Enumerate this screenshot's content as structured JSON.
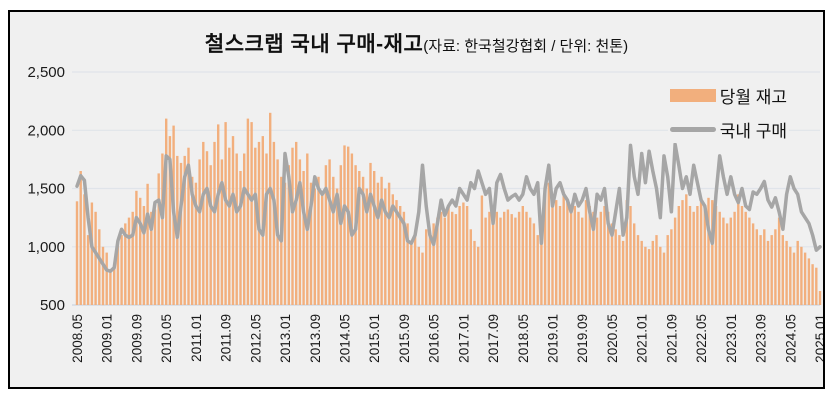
{
  "title": {
    "main": "철스크랩 국내 구매-재고",
    "subtitle": "(자료: 한국철강협회 / 단위: 천톤)"
  },
  "legend": [
    {
      "label": "당월 재고",
      "type": "bar",
      "color": "#F2AF7D"
    },
    {
      "label": "국내 구매",
      "type": "line",
      "color": "#A6A6A6"
    }
  ],
  "colors": {
    "bar": "#F2AF7D",
    "line": "#A6A6A6",
    "grid": "#E0E4EA",
    "axis": "#D2D9E2",
    "plot_background": "#F0F0F0",
    "border": "#000000"
  },
  "chart_data": {
    "type": "bar+line",
    "title": "철스크랩 국내 구매-재고",
    "subtitle": "(자료: 한국철강협회 / 단위: 천톤)",
    "unit": "천톤",
    "ylim": [
      500,
      2500
    ],
    "y_ticks": [
      500,
      1000,
      1500,
      2000,
      2500
    ],
    "y_tick_labels": [
      "500",
      "1,000",
      "1,500",
      "2,000",
      "2,500"
    ],
    "x_tick_every": 8,
    "x_tick_labels": [
      "2008.05",
      "2009.01",
      "2009.09",
      "2010.05",
      "2011.01",
      "2011.09",
      "2012.05",
      "2013.01",
      "2013.09",
      "2014.05",
      "2015.01",
      "2015.09",
      "2016.05",
      "2017.01",
      "2017.09",
      "2018.05",
      "2019.01",
      "2019.09",
      "2020.05",
      "2021.01",
      "2021.09",
      "2022.05",
      "2023.01",
      "2023.09",
      "2024.05",
      "2025.01"
    ],
    "categories": [
      "2008.05",
      "2008.06",
      "2008.07",
      "2008.08",
      "2008.09",
      "2008.10",
      "2008.11",
      "2008.12",
      "2009.01",
      "2009.02",
      "2009.03",
      "2009.04",
      "2009.05",
      "2009.06",
      "2009.07",
      "2009.08",
      "2009.09",
      "2009.10",
      "2009.11",
      "2009.12",
      "2010.01",
      "2010.02",
      "2010.03",
      "2010.04",
      "2010.05",
      "2010.06",
      "2010.07",
      "2010.08",
      "2010.09",
      "2010.10",
      "2010.11",
      "2010.12",
      "2011.01",
      "2011.02",
      "2011.03",
      "2011.04",
      "2011.05",
      "2011.06",
      "2011.07",
      "2011.08",
      "2011.09",
      "2011.10",
      "2011.11",
      "2011.12",
      "2012.01",
      "2012.02",
      "2012.03",
      "2012.04",
      "2012.05",
      "2012.06",
      "2012.07",
      "2012.08",
      "2012.09",
      "2012.10",
      "2012.11",
      "2012.12",
      "2013.01",
      "2013.02",
      "2013.03",
      "2013.04",
      "2013.05",
      "2013.06",
      "2013.07",
      "2013.08",
      "2013.09",
      "2013.10",
      "2013.11",
      "2013.12",
      "2014.01",
      "2014.02",
      "2014.03",
      "2014.04",
      "2014.05",
      "2014.06",
      "2014.07",
      "2014.08",
      "2014.09",
      "2014.10",
      "2014.11",
      "2014.12",
      "2015.01",
      "2015.02",
      "2015.03",
      "2015.04",
      "2015.05",
      "2015.06",
      "2015.07",
      "2015.08",
      "2015.09",
      "2015.10",
      "2015.11",
      "2015.12",
      "2016.01",
      "2016.02",
      "2016.03",
      "2016.04",
      "2016.05",
      "2016.06",
      "2016.07",
      "2016.08",
      "2016.09",
      "2016.10",
      "2016.11",
      "2016.12",
      "2017.01",
      "2017.02",
      "2017.03",
      "2017.04",
      "2017.05",
      "2017.06",
      "2017.07",
      "2017.08",
      "2017.09",
      "2017.10",
      "2017.11",
      "2017.12",
      "2018.01",
      "2018.02",
      "2018.03",
      "2018.04",
      "2018.05",
      "2018.06",
      "2018.07",
      "2018.08",
      "2018.09",
      "2018.10",
      "2018.11",
      "2018.12",
      "2019.01",
      "2019.02",
      "2019.03",
      "2019.04",
      "2019.05",
      "2019.06",
      "2019.07",
      "2019.08",
      "2019.09",
      "2019.10",
      "2019.11",
      "2019.12",
      "2020.01",
      "2020.02",
      "2020.03",
      "2020.04",
      "2020.05",
      "2020.06",
      "2020.07",
      "2020.08",
      "2020.09",
      "2020.10",
      "2020.11",
      "2020.12",
      "2021.01",
      "2021.02",
      "2021.03",
      "2021.04",
      "2021.05",
      "2021.06",
      "2021.07",
      "2021.08",
      "2021.09",
      "2021.10",
      "2021.11",
      "2021.12",
      "2022.01",
      "2022.02",
      "2022.03",
      "2022.04",
      "2022.05",
      "2022.06",
      "2022.07",
      "2022.08",
      "2022.09",
      "2022.10",
      "2022.11",
      "2022.12",
      "2023.01",
      "2023.02",
      "2023.03",
      "2023.04",
      "2023.05",
      "2023.06",
      "2023.07",
      "2023.08",
      "2023.09",
      "2023.10",
      "2023.11",
      "2023.12",
      "2024.01",
      "2024.02",
      "2024.03",
      "2024.04",
      "2024.05",
      "2024.06",
      "2024.07",
      "2024.08",
      "2024.09",
      "2024.10",
      "2024.11",
      "2024.12",
      "2025.01"
    ],
    "series": [
      {
        "name": "당월 재고",
        "type": "bar",
        "color": "#F2AF7D",
        "values": [
          1390,
          1650,
          1450,
          1100,
          1380,
          1300,
          1150,
          1000,
          950,
          800,
          820,
          1050,
          1100,
          1200,
          1250,
          1300,
          1480,
          1420,
          1350,
          1540,
          1300,
          1320,
          1630,
          1800,
          2100,
          1950,
          2040,
          1780,
          1720,
          1780,
          1850,
          1600,
          1550,
          1750,
          1900,
          1820,
          1700,
          1900,
          2050,
          1750,
          2070,
          1850,
          1950,
          1800,
          1650,
          1800,
          2100,
          2070,
          1850,
          1900,
          1950,
          1800,
          2150,
          1900,
          1750,
          1600,
          1550,
          1700,
          1850,
          1900,
          1750,
          1650,
          1800,
          1550,
          1500,
          1600,
          1450,
          1700,
          1750,
          1600,
          1500,
          1700,
          1870,
          1860,
          1800,
          1700,
          1650,
          1600,
          1500,
          1720,
          1650,
          1550,
          1600,
          1500,
          1550,
          1450,
          1400,
          1350,
          1300,
          1200,
          1050,
          1100,
          1000,
          950,
          1150,
          1100,
          1200,
          1250,
          1300,
          1250,
          1350,
          1300,
          1280,
          1350,
          1380,
          1350,
          1150,
          1050,
          1000,
          1440,
          1250,
          1300,
          1280,
          1300,
          1250,
          1300,
          1320,
          1280,
          1250,
          1300,
          1350,
          1300,
          1250,
          1200,
          1100,
          1050,
          1500,
          1550,
          1450,
          1400,
          1350,
          1450,
          1400,
          1300,
          1350,
          1300,
          1250,
          1400,
          1350,
          1300,
          1250,
          1300,
          1350,
          1300,
          1200,
          1150,
          1100,
          1050,
          1400,
          1350,
          1200,
          1100,
          1050,
          1000,
          980,
          1050,
          1100,
          1000,
          950,
          1100,
          1150,
          1250,
          1350,
          1400,
          1450,
          1350,
          1300,
          1350,
          1400,
          1350,
          1420,
          1400,
          1350,
          1300,
          1250,
          1200,
          1250,
          1300,
          1450,
          1350,
          1300,
          1250,
          1200,
          1150,
          1100,
          1150,
          1050,
          1100,
          1150,
          1250,
          1100,
          1050,
          1000,
          950,
          1050,
          1000,
          950,
          900,
          850,
          820,
          620
        ]
      },
      {
        "name": "국내 구매",
        "type": "line",
        "color": "#A6A6A6",
        "values": [
          1520,
          1610,
          1570,
          1250,
          1000,
          950,
          900,
          850,
          800,
          790,
          820,
          1050,
          1150,
          1100,
          1080,
          1100,
          1250,
          1200,
          1120,
          1280,
          1150,
          1380,
          1400,
          1250,
          1780,
          1750,
          1300,
          1080,
          1350,
          1600,
          1700,
          1450,
          1350,
          1300,
          1450,
          1500,
          1350,
          1300,
          1450,
          1550,
          1400,
          1350,
          1450,
          1300,
          1350,
          1500,
          1450,
          1400,
          1450,
          1150,
          1100,
          1450,
          1500,
          1400,
          1100,
          1050,
          1800,
          1600,
          1300,
          1400,
          1550,
          1300,
          1150,
          1350,
          1600,
          1500,
          1450,
          1500,
          1400,
          1300,
          1450,
          1200,
          1350,
          1300,
          1100,
          1150,
          1500,
          1450,
          1300,
          1450,
          1350,
          1250,
          1400,
          1300,
          1250,
          1350,
          1300,
          1250,
          1200,
          1050,
          1030,
          1100,
          1300,
          1700,
          1350,
          1100,
          1020,
          1200,
          1400,
          1270,
          1350,
          1400,
          1350,
          1500,
          1450,
          1400,
          1550,
          1500,
          1650,
          1550,
          1450,
          1500,
          1200,
          1550,
          1620,
          1500,
          1400,
          1430,
          1450,
          1400,
          1450,
          1600,
          1500,
          1450,
          1550,
          1030,
          1500,
          1700,
          1350,
          1500,
          1550,
          1450,
          1400,
          1300,
          1450,
          1350,
          1400,
          1500,
          1300,
          1150,
          1450,
          1400,
          1500,
          1200,
          1100,
          1300,
          1500,
          1100,
          1250,
          1870,
          1600,
          1450,
          1800,
          1550,
          1820,
          1650,
          1500,
          1250,
          1780,
          1600,
          1300,
          1880,
          1700,
          1500,
          1600,
          1450,
          1700,
          1550,
          1400,
          1350,
          1150,
          1030,
          1450,
          1780,
          1600,
          1450,
          1600,
          1450,
          1380,
          1500,
          1350,
          1320,
          1470,
          1450,
          1500,
          1560,
          1400,
          1340,
          1420,
          1300,
          1150,
          1450,
          1600,
          1500,
          1450,
          1300,
          1250,
          1200,
          1100,
          970,
          1000
        ]
      }
    ]
  }
}
